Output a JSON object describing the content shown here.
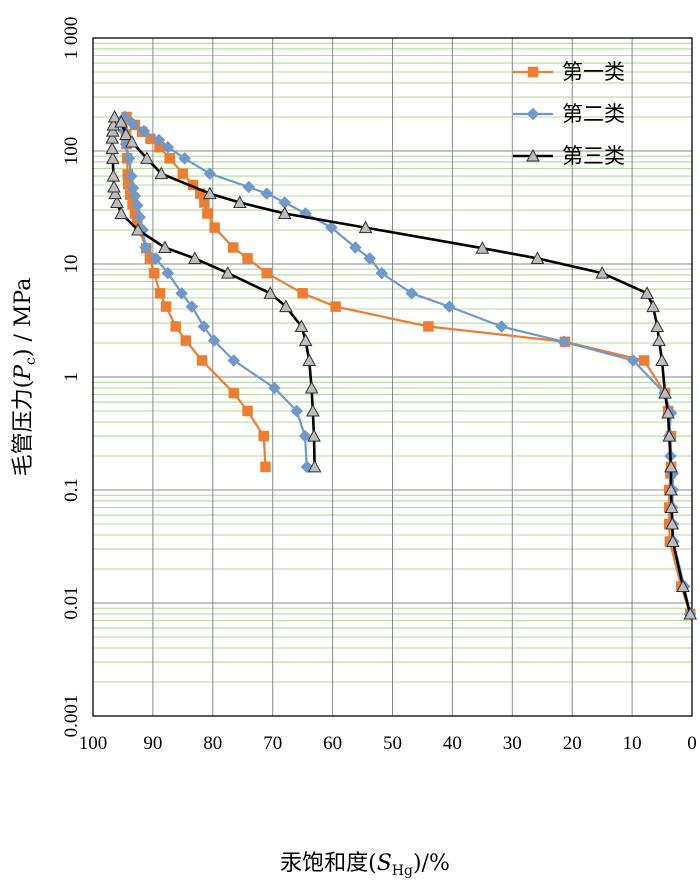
{
  "chart_data": {
    "type": "line",
    "xlabel_main": "汞饱和度(",
    "xlabel_var": "S",
    "xlabel_sub": "Hg",
    "xlabel_tail": ")/%",
    "ylabel_main": "毛管压力(",
    "ylabel_var": "P",
    "ylabel_sub": "c",
    "ylabel_tail": ") / MPa",
    "x_reversed": true,
    "xlim": [
      0,
      100
    ],
    "y_log": true,
    "ylim": [
      0.001,
      1000
    ],
    "x_ticks": [
      "100",
      "90",
      "80",
      "70",
      "60",
      "50",
      "40",
      "30",
      "20",
      "10",
      "0"
    ],
    "y_ticks": [
      "0.001",
      "0.01",
      "0.1",
      "1",
      "10",
      "100",
      "1 000"
    ],
    "grid": true,
    "legend_position": "top-right",
    "series": [
      {
        "name": "第一类",
        "color": "#ED7D31",
        "marker": "square",
        "points": [
          [
            71.2,
            0.16
          ],
          [
            71.5,
            0.3
          ],
          [
            74.2,
            0.5
          ],
          [
            76.5,
            0.72
          ],
          [
            81.8,
            1.4
          ],
          [
            84.5,
            2.1
          ],
          [
            86.2,
            2.8
          ],
          [
            87.8,
            4.2
          ],
          [
            88.8,
            5.5
          ],
          [
            89.8,
            8.3
          ],
          [
            90.5,
            11.2
          ],
          [
            91.1,
            13.8
          ],
          [
            92.3,
            20
          ],
          [
            92.6,
            24
          ],
          [
            93.0,
            28
          ],
          [
            93.4,
            34
          ],
          [
            93.8,
            41
          ],
          [
            94.1,
            51
          ],
          [
            94.2,
            62
          ],
          [
            94.3,
            86
          ],
          [
            94.4,
            115
          ],
          [
            94.5,
            140
          ],
          [
            94.4,
            200
          ],
          [
            93.0,
            170
          ],
          [
            91.8,
            148
          ],
          [
            90.4,
            128
          ],
          [
            88.9,
            108
          ],
          [
            87.2,
            86
          ],
          [
            85.0,
            63
          ],
          [
            83.3,
            50
          ],
          [
            82.1,
            42
          ],
          [
            81.4,
            35
          ],
          [
            80.9,
            28
          ],
          [
            79.7,
            21
          ],
          [
            76.6,
            14
          ],
          [
            74.2,
            11.2
          ],
          [
            71.0,
            8.3
          ],
          [
            65.0,
            5.5
          ],
          [
            59.5,
            4.2
          ],
          [
            44.0,
            2.8
          ],
          [
            21.2,
            2.05
          ],
          [
            8.0,
            1.4
          ],
          [
            4.5,
            0.72
          ],
          [
            4.0,
            0.5
          ],
          [
            3.5,
            0.3
          ],
          [
            3.5,
            0.16
          ],
          [
            3.6,
            0.14
          ],
          [
            3.8,
            0.1
          ],
          [
            3.8,
            0.07
          ],
          [
            3.8,
            0.05
          ],
          [
            3.7,
            0.035
          ],
          [
            1.8,
            0.014
          ],
          [
            0.3,
            0.008
          ]
        ]
      },
      {
        "name": "第二类",
        "color": "#7098C8",
        "marker": "diamond",
        "points": [
          [
            64.3,
            0.16
          ],
          [
            64.6,
            0.3
          ],
          [
            66.0,
            0.5
          ],
          [
            69.7,
            0.8
          ],
          [
            76.5,
            1.4
          ],
          [
            79.8,
            2.1
          ],
          [
            81.5,
            2.8
          ],
          [
            83.5,
            4.2
          ],
          [
            85.2,
            5.5
          ],
          [
            87.5,
            8.3
          ],
          [
            89.5,
            11.2
          ],
          [
            91.2,
            14
          ],
          [
            91.7,
            20
          ],
          [
            92.2,
            26
          ],
          [
            92.6,
            33
          ],
          [
            93.0,
            40
          ],
          [
            93.3,
            47
          ],
          [
            93.6,
            60
          ],
          [
            94.0,
            86
          ],
          [
            94.5,
            115
          ],
          [
            94.8,
            150
          ],
          [
            94.7,
            200
          ],
          [
            93.4,
            175
          ],
          [
            91.5,
            150
          ],
          [
            89.0,
            125
          ],
          [
            87.5,
            108
          ],
          [
            84.7,
            86
          ],
          [
            80.5,
            63
          ],
          [
            74.0,
            48
          ],
          [
            71.0,
            42
          ],
          [
            68.0,
            35
          ],
          [
            64.5,
            28
          ],
          [
            60.2,
            21
          ],
          [
            56.2,
            14
          ],
          [
            53.8,
            11.2
          ],
          [
            51.8,
            8.3
          ],
          [
            46.8,
            5.5
          ],
          [
            40.5,
            4.2
          ],
          [
            31.8,
            2.8
          ],
          [
            21.4,
            2.05
          ],
          [
            9.8,
            1.4
          ],
          [
            4.6,
            0.72
          ],
          [
            3.5,
            0.48
          ],
          [
            3.8,
            0.3
          ],
          [
            3.6,
            0.2
          ],
          [
            3.2,
            0.14
          ],
          [
            3.2,
            0.1
          ],
          [
            3.3,
            0.07
          ],
          [
            3.2,
            0.05
          ],
          [
            3.1,
            0.035
          ],
          [
            1.3,
            0.014
          ],
          [
            0.3,
            0.008
          ]
        ]
      },
      {
        "name": "第三类",
        "color": "#000000",
        "marker": "triangle",
        "points": [
          [
            63.0,
            0.16
          ],
          [
            63.1,
            0.3
          ],
          [
            63.3,
            0.5
          ],
          [
            63.5,
            0.8
          ],
          [
            63.9,
            1.4
          ],
          [
            64.5,
            2.1
          ],
          [
            65.2,
            2.8
          ],
          [
            67.8,
            4.2
          ],
          [
            70.4,
            5.5
          ],
          [
            77.5,
            8.3
          ],
          [
            83.0,
            11.2
          ],
          [
            88.0,
            14
          ],
          [
            92.5,
            20
          ],
          [
            95.3,
            28
          ],
          [
            96.0,
            35
          ],
          [
            96.3,
            42
          ],
          [
            96.5,
            48
          ],
          [
            96.6,
            60
          ],
          [
            96.7,
            86
          ],
          [
            96.8,
            105
          ],
          [
            96.8,
            130
          ],
          [
            96.7,
            150
          ],
          [
            96.6,
            170
          ],
          [
            96.4,
            200
          ],
          [
            95.3,
            180
          ],
          [
            94.5,
            140
          ],
          [
            93.5,
            120
          ],
          [
            91.0,
            86
          ],
          [
            88.6,
            63
          ],
          [
            80.5,
            42
          ],
          [
            75.5,
            35
          ],
          [
            68.0,
            28
          ],
          [
            54.5,
            21
          ],
          [
            35.0,
            13.8
          ],
          [
            25.8,
            11.2
          ],
          [
            15.0,
            8.3
          ],
          [
            7.5,
            5.5
          ],
          [
            6.5,
            4.2
          ],
          [
            5.8,
            2.8
          ],
          [
            5.5,
            2.1
          ],
          [
            5.0,
            1.4
          ],
          [
            4.5,
            0.72
          ],
          [
            4.0,
            0.48
          ],
          [
            3.8,
            0.3
          ],
          [
            3.5,
            0.16
          ],
          [
            3.5,
            0.1
          ],
          [
            3.4,
            0.07
          ],
          [
            3.3,
            0.05
          ],
          [
            3.2,
            0.035
          ],
          [
            1.5,
            0.014
          ],
          [
            0.3,
            0.008
          ]
        ]
      }
    ]
  }
}
